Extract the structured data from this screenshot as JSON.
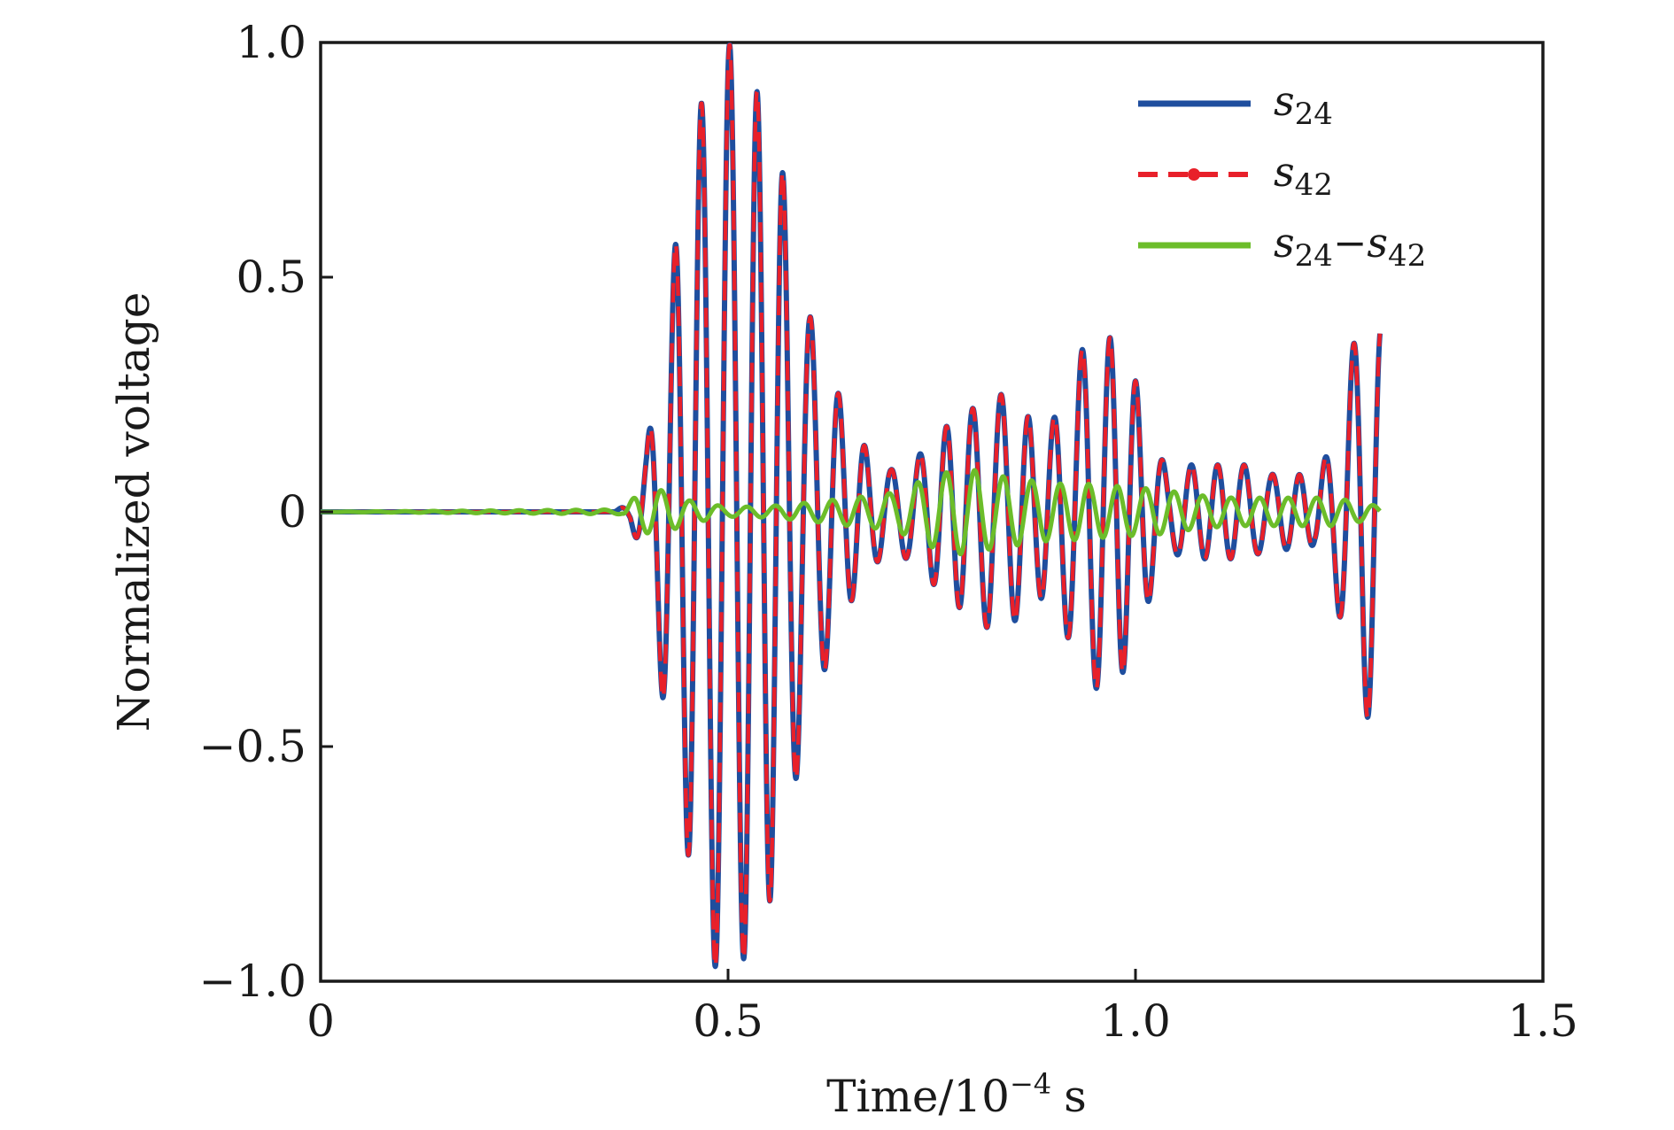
{
  "chart_data": {
    "type": "line",
    "title": "",
    "xlabel": "Time/10",
    "xlabel_exp": "−4",
    "xlabel_unit": "s",
    "ylabel": "Normalized voltage",
    "xlim": [
      0,
      1.5
    ],
    "ylim": [
      -1.0,
      1.0
    ],
    "x_ticks": [
      0,
      0.5,
      1.0,
      1.5
    ],
    "x_tick_labels": [
      "0",
      "0.5",
      "1.0",
      "1.5"
    ],
    "y_ticks": [
      -1.0,
      -0.5,
      0,
      0.5,
      1.0
    ],
    "y_tick_labels": [
      "−1.0",
      "−0.5",
      "0",
      "0.5",
      "1.0"
    ],
    "grid": false,
    "legend_position": "top-right",
    "carrier_period": 0.0333,
    "series": [
      {
        "name": "s24",
        "legend_base": "s",
        "legend_sub": "24",
        "color": "#1f4e9e",
        "style": "solid",
        "envelope": {
          "x": [
            0,
            0.36,
            0.38,
            0.4,
            0.42,
            0.44,
            0.46,
            0.48,
            0.5,
            0.52,
            0.54,
            0.56,
            0.58,
            0.6,
            0.62,
            0.64,
            0.66,
            0.68,
            0.7,
            0.72,
            0.74,
            0.76,
            0.78,
            0.8,
            0.82,
            0.84,
            0.86,
            0.88,
            0.9,
            0.92,
            0.94,
            0.96,
            0.98,
            1.0,
            1.02,
            1.04,
            1.06,
            1.08,
            1.1,
            1.12,
            1.14,
            1.16,
            1.18,
            1.2,
            1.22,
            1.24,
            1.26,
            1.28,
            1.3
          ],
          "amp": [
            0,
            0,
            0.02,
            0.13,
            0.4,
            0.62,
            0.82,
            0.96,
            1.0,
            0.95,
            0.88,
            0.79,
            0.6,
            0.42,
            0.33,
            0.23,
            0.16,
            0.11,
            0.09,
            0.1,
            0.13,
            0.17,
            0.2,
            0.22,
            0.25,
            0.25,
            0.22,
            0.18,
            0.2,
            0.28,
            0.37,
            0.38,
            0.36,
            0.28,
            0.17,
            0.08,
            0.1,
            0.1,
            0.1,
            0.1,
            0.1,
            0.08,
            0.08,
            0.08,
            0.07,
            0.14,
            0.3,
            0.45,
            0.4
          ]
        }
      },
      {
        "name": "s42",
        "legend_base": "s",
        "legend_sub": "42",
        "color": "#e8202a",
        "style": "dashed-dot"
      },
      {
        "name": "s24−s42",
        "legend_base1": "s",
        "legend_sub1": "24",
        "legend_minus": "−",
        "legend_base2": "s",
        "legend_sub2": "42",
        "color": "#6cbd2a",
        "style": "solid",
        "envelope": {
          "x": [
            0,
            0.37,
            0.39,
            0.41,
            0.43,
            0.45,
            0.5,
            0.55,
            0.6,
            0.65,
            0.68,
            0.7,
            0.72,
            0.74,
            0.76,
            0.78,
            0.8,
            0.82,
            0.84,
            0.86,
            0.88,
            0.9,
            0.92,
            0.94,
            0.96,
            0.98,
            1.0,
            1.02,
            1.04,
            1.08,
            1.12,
            1.16,
            1.2,
            1.24,
            1.28,
            1.3
          ],
          "amp": [
            0,
            0.005,
            0.04,
            0.05,
            0.04,
            0.025,
            0.01,
            0.012,
            0.02,
            0.03,
            0.035,
            0.04,
            0.05,
            0.07,
            0.08,
            0.09,
            0.09,
            0.08,
            0.075,
            0.07,
            0.065,
            0.06,
            0.06,
            0.06,
            0.055,
            0.055,
            0.05,
            0.05,
            0.045,
            0.035,
            0.03,
            0.03,
            0.03,
            0.03,
            0.02,
            0.01
          ]
        }
      }
    ]
  }
}
